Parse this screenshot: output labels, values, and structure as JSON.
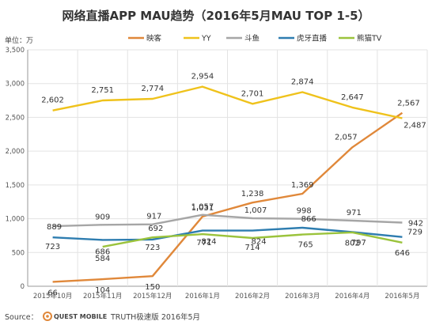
{
  "chart_data": {
    "type": "line",
    "title": "网络直播APP MAU趋势（2016年5月MAU TOP 1-5）",
    "unit_label": "单位：万",
    "categories": [
      "2015年10月",
      "2015年11月",
      "2015年12月",
      "2016年1月",
      "2016年2月",
      "2016年3月",
      "2016年4月",
      "2016年5月"
    ],
    "ylim": [
      0,
      3500
    ],
    "yticks": [
      "0",
      "500",
      "1,000",
      "1,500",
      "2,000",
      "2,500",
      "3,000",
      "3,500"
    ],
    "grid": true,
    "legend_position": "top",
    "series": [
      {
        "name": "映客",
        "color": "#E0883A",
        "values": [
          66,
          104,
          150,
          1031,
          1238,
          1369,
          2057,
          2567
        ],
        "labels": [
          "66",
          "104",
          "150",
          "1,031",
          "1,238",
          "1,369",
          "2,057",
          "2,567"
        ]
      },
      {
        "name": "YY",
        "color": "#EFC21B",
        "values": [
          2602,
          2751,
          2774,
          2954,
          2701,
          2874,
          2647,
          2487
        ],
        "labels": [
          "2,602",
          "2,751",
          "2,774",
          "2,954",
          "2,701",
          "2,874",
          "2,647",
          "2,487"
        ]
      },
      {
        "name": "斗鱼",
        "color": "#A6A6A6",
        "values": [
          889,
          909,
          917,
          1057,
          1007,
          998,
          971,
          942
        ],
        "labels": [
          "889",
          "909",
          "917",
          "1,057",
          "1,007",
          "998",
          "971",
          "942"
        ]
      },
      {
        "name": "虎牙直播",
        "color": "#2E7DB0",
        "values": [
          723,
          686,
          692,
          824,
          824,
          866,
          802,
          729
        ],
        "labels": [
          "723",
          "686",
          "692",
          "824",
          "824",
          "866",
          "802",
          "729"
        ]
      },
      {
        "name": "熊猫TV",
        "color": "#9BC33C",
        "values": [
          null,
          584,
          723,
          771,
          714,
          765,
          797,
          646
        ],
        "labels": [
          "",
          "584",
          "723",
          "771",
          "714",
          "765",
          "797",
          "646"
        ]
      }
    ]
  },
  "footer": {
    "source_label": "Source：",
    "brand": "QUEST MOBILE",
    "note": "TRUTH极速版 2016年5月"
  }
}
